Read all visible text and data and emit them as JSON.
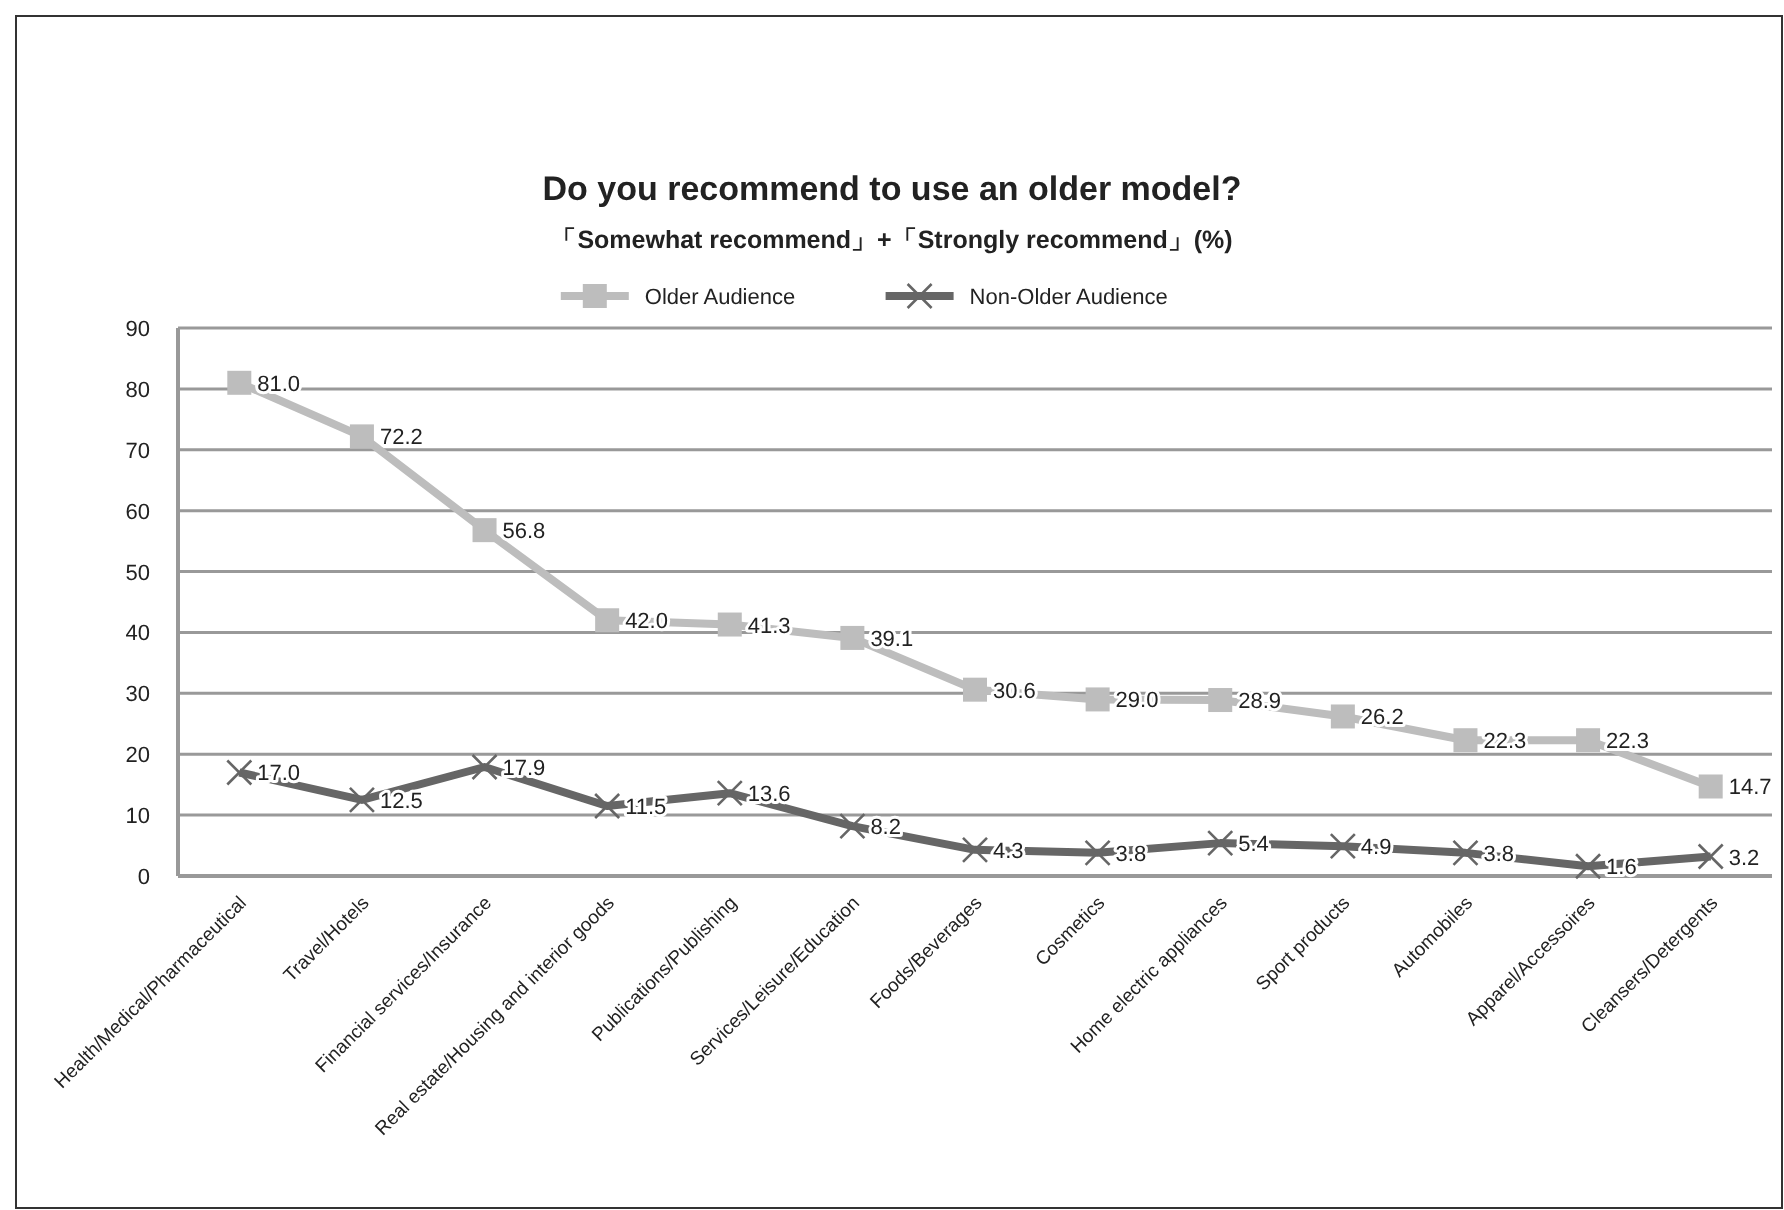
{
  "chart_data": {
    "type": "line",
    "title": "Do you recommend to use an older model?",
    "subtitle": "「Somewhat recommend」+「Strongly recommend」(%)",
    "categories": [
      "Health/Medical/Pharmaceutical",
      "Travel/Hotels",
      "Financial services/Insurance",
      "Real estate/Housing and interior goods",
      "Publications/Publishing",
      "Services/Leisure/Education",
      "Foods/Beverages",
      "Cosmetics",
      "Home electric appliances",
      "Sport products",
      "Automobiles",
      "Apparel/Accessoires",
      "Cleansers/Detergents"
    ],
    "series": [
      {
        "name": "Older Audience",
        "color": "#bdbdbd",
        "marker": "square",
        "values": [
          81.0,
          72.2,
          56.8,
          42.0,
          41.3,
          39.1,
          30.6,
          29.0,
          28.9,
          26.2,
          22.3,
          22.3,
          14.7
        ],
        "value_labels": [
          "81.0",
          "72.2",
          "56.8",
          "42.0",
          "41.3",
          "39.1",
          "30.6",
          "29.0",
          "28.9",
          "26.2",
          "22.3",
          "22.3",
          "14.7"
        ]
      },
      {
        "name": "Non-Older Audience",
        "color": "#666666",
        "marker": "cross",
        "values": [
          17.0,
          12.5,
          17.9,
          11.5,
          13.6,
          8.2,
          4.3,
          3.8,
          5.4,
          4.9,
          3.8,
          1.6,
          3.2
        ],
        "value_labels": [
          "17.0",
          "12.5",
          "17.9",
          "11.5",
          "13.6",
          "8.2",
          "4.3",
          "3.8",
          "5.4",
          "4.9",
          "3.8",
          "1.6",
          "3.2"
        ]
      }
    ],
    "ylim": [
      0,
      90
    ],
    "yticks": [
      0,
      10,
      20,
      30,
      40,
      50,
      60,
      70,
      80,
      90
    ],
    "grid": "y",
    "legend": "top"
  }
}
